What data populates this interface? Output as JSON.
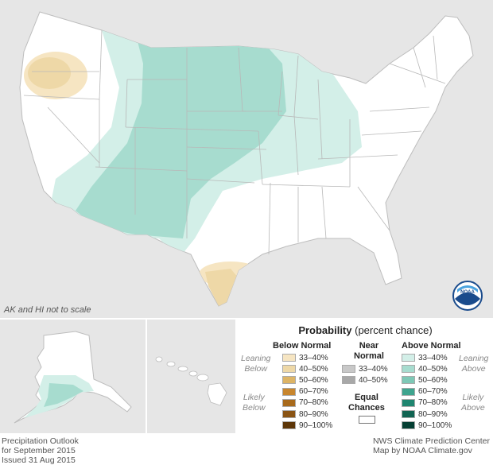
{
  "note": "AK and HI not to scale",
  "legend": {
    "title_bold": "Probability",
    "title_rest": " (percent chance)",
    "below": {
      "header": "Below Normal",
      "leaning": [
        "Leaning",
        "Below"
      ],
      "likely": [
        "Likely",
        "Below"
      ],
      "rows": [
        {
          "label": "33–40%",
          "color": "#f6e5c2"
        },
        {
          "label": "40–50%",
          "color": "#eed8a7"
        },
        {
          "label": "50–60%",
          "color": "#ddb465"
        },
        {
          "label": "60–70%",
          "color": "#c8862e"
        },
        {
          "label": "70–80%",
          "color": "#a86a1c"
        },
        {
          "label": "80–90%",
          "color": "#8a5414"
        },
        {
          "label": "90–100%",
          "color": "#5d3608"
        }
      ]
    },
    "near": {
      "header": [
        "Near",
        "Normal"
      ],
      "rows": [
        {
          "label": "33–40%",
          "color": "#c8c8c8"
        },
        {
          "label": "40–50%",
          "color": "#a8a8a8"
        }
      ]
    },
    "equal": {
      "label": [
        "Equal",
        "Chances"
      ],
      "color": "#ffffff"
    },
    "above": {
      "header": "Above Normal",
      "leaning": [
        "Leaning",
        "Above"
      ],
      "likely": [
        "Likely",
        "Above"
      ],
      "rows": [
        {
          "label": "33–40%",
          "color": "#d3efe8"
        },
        {
          "label": "40–50%",
          "color": "#a7dccf"
        },
        {
          "label": "50–60%",
          "color": "#7ec8b6"
        },
        {
          "label": "60–70%",
          "color": "#3ea48e"
        },
        {
          "label": "70–80%",
          "color": "#1f8670"
        },
        {
          "label": "80–90%",
          "color": "#106452"
        },
        {
          "label": "90–100%",
          "color": "#053f33"
        }
      ]
    }
  },
  "footer": {
    "left": [
      "Precipitation Outlook",
      "for September 2015",
      "Issued 31 Aug 2015"
    ],
    "right": [
      "NWS Climate Prediction Center",
      "Map by NOAA Climate.gov"
    ]
  },
  "logo": {
    "text": "NOAA"
  },
  "colors": {
    "background": "#e6e6e6",
    "land": "#ffffff",
    "border": "#c0c0c0"
  }
}
